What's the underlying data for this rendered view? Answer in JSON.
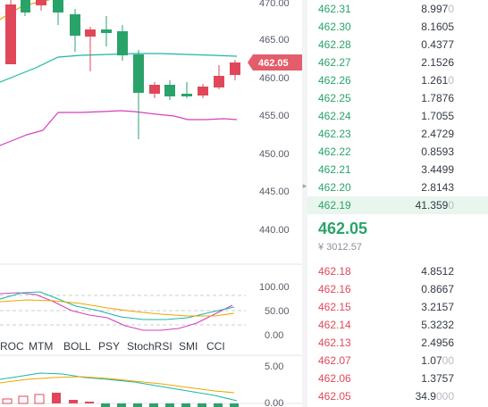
{
  "chart": {
    "price_axis": [
      "470.00",
      "465.00",
      "460.00",
      "455.00",
      "450.00",
      "445.00",
      "440.00"
    ],
    "current_price_tag": "462.05",
    "colors": {
      "up": "#e0485a",
      "down": "#2aa36b",
      "boll_upper": "#1ab7a6",
      "boll_lower": "#d43fbe",
      "boll_mid": "#f0a500",
      "current_tag_bg": "#e35d6a"
    },
    "osc_axis": [
      "100.00",
      "50.00",
      "0.00"
    ],
    "macd_axis": [
      "5.00",
      "0.00"
    ]
  },
  "indicator_tabs": [
    "ROC",
    "MTM",
    "BOLL",
    "PSY",
    "StochRSI",
    "SMI",
    "CCI"
  ],
  "orderbook": {
    "bids": [
      {
        "price": "462.31",
        "amount": "8.997",
        "amount_faded": "0"
      },
      {
        "price": "462.30",
        "amount": "8.1605",
        "amount_faded": ""
      },
      {
        "price": "462.28",
        "amount": "0.4377",
        "amount_faded": ""
      },
      {
        "price": "462.27",
        "amount": "2.1526",
        "amount_faded": ""
      },
      {
        "price": "462.26",
        "amount": "1.261",
        "amount_faded": "0"
      },
      {
        "price": "462.25",
        "amount": "1.7876",
        "amount_faded": ""
      },
      {
        "price": "462.24",
        "amount": "1.7055",
        "amount_faded": ""
      },
      {
        "price": "462.23",
        "amount": "2.4729",
        "amount_faded": ""
      },
      {
        "price": "462.22",
        "amount": "0.8593",
        "amount_faded": ""
      },
      {
        "price": "462.21",
        "amount": "3.4499",
        "amount_faded": ""
      },
      {
        "price": "462.20",
        "amount": "2.8143",
        "amount_faded": ""
      },
      {
        "price": "462.19",
        "amount": "41.359",
        "amount_faded": "0"
      }
    ],
    "mid_price": "462.05",
    "mid_price_cny": "¥ 3012.57",
    "asks": [
      {
        "price": "462.18",
        "amount": "4.8512",
        "amount_faded": ""
      },
      {
        "price": "462.16",
        "amount": "0.8667",
        "amount_faded": ""
      },
      {
        "price": "462.15",
        "amount": "3.2157",
        "amount_faded": ""
      },
      {
        "price": "462.14",
        "amount": "5.3232",
        "amount_faded": ""
      },
      {
        "price": "462.13",
        "amount": "2.4956",
        "amount_faded": ""
      },
      {
        "price": "462.07",
        "amount": "1.07",
        "amount_faded": "00"
      },
      {
        "price": "462.06",
        "amount": "1.3757",
        "amount_faded": ""
      },
      {
        "price": "462.05",
        "amount": "34.9",
        "amount_faded": "000"
      }
    ]
  }
}
